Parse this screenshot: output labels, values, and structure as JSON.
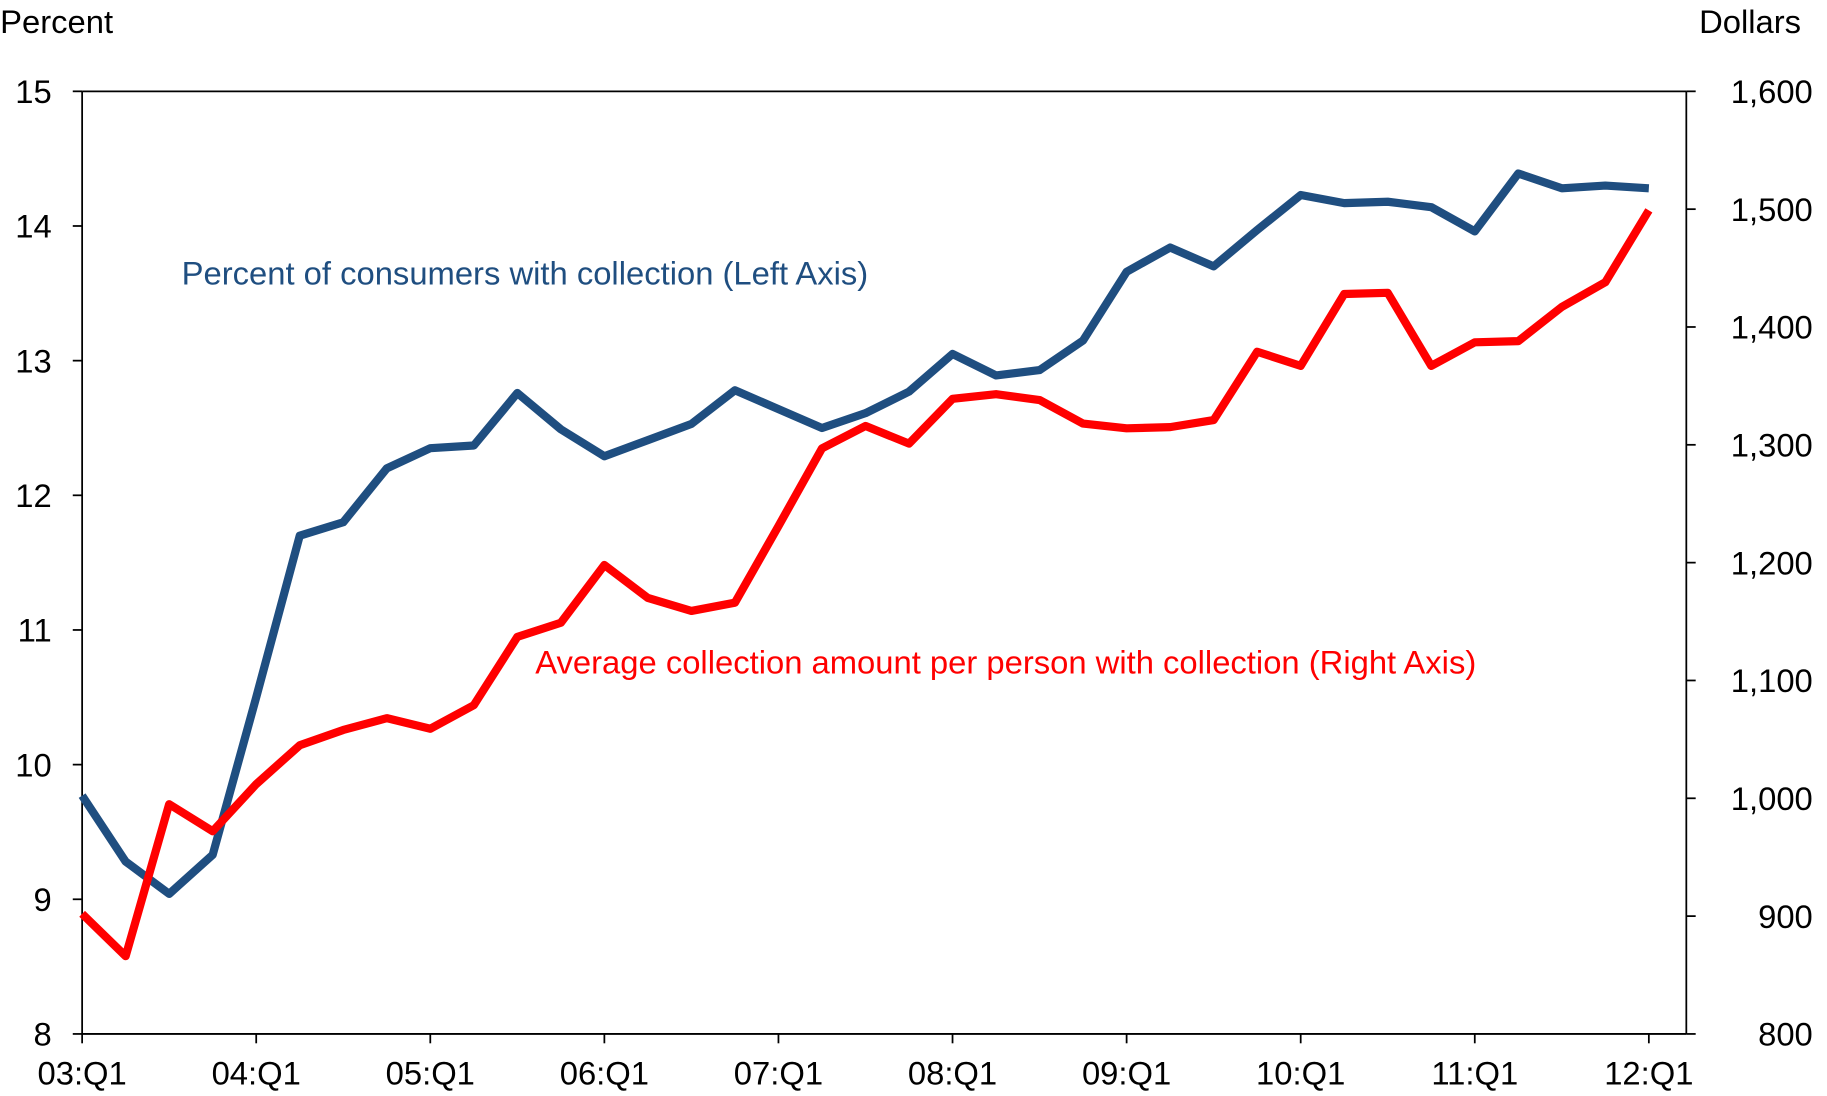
{
  "chart_data": {
    "type": "line",
    "y_label": "Percent",
    "y2_label": "Dollars",
    "annotations": [
      "Percent of consumers with collection (Left Axis)",
      "Average collection amount per person with collection (Right Axis)"
    ],
    "categories": [
      "03:Q1",
      null,
      null,
      null,
      "04:Q1",
      null,
      null,
      null,
      "05:Q1",
      null,
      null,
      null,
      "06:Q1",
      null,
      null,
      null,
      "07:Q1",
      null,
      null,
      null,
      "08:Q1",
      null,
      null,
      null,
      "09:Q1",
      null,
      null,
      null,
      "10:Q1",
      null,
      null,
      null,
      "11:Q1",
      null,
      null,
      null,
      "12:Q1"
    ],
    "ylim": [
      8,
      15
    ],
    "yticks": [
      8,
      9,
      10,
      11,
      12,
      13,
      14,
      15
    ],
    "y2lim": [
      800,
      1600
    ],
    "y2ticks": [
      800,
      900,
      {
        "value": 1000,
        "label": "1,000"
      },
      {
        "value": 1100,
        "label": "1,100"
      },
      {
        "value": 1200,
        "label": "1,200"
      },
      {
        "value": 1300,
        "label": "1,300"
      },
      {
        "value": 1400,
        "label": "1,400"
      },
      {
        "value": 1500,
        "label": "1,500"
      },
      {
        "value": 1600,
        "label": "1,600"
      }
    ],
    "grid": false,
    "series": [
      {
        "name": "Percent of consumers with collection",
        "color": "#1f4e80",
        "values": [
          9.77,
          9.28,
          9.04,
          9.33,
          10.5,
          11.7,
          11.8,
          12.2,
          12.35,
          12.37,
          12.76,
          12.49,
          12.29,
          12.41,
          12.53,
          12.78,
          12.64,
          12.5,
          12.61,
          12.77,
          13.05,
          12.89,
          12.93,
          13.15,
          13.66,
          13.84,
          13.7,
          13.97,
          14.23,
          14.17,
          14.18,
          14.14,
          13.96,
          14.39,
          14.28,
          14.3,
          14.28
        ]
      },
      {
        "name": "Average collection amount per person with collection",
        "color": "#ff0000",
        "axis": "y2",
        "values": [
          902,
          866,
          995,
          972,
          1012,
          1045,
          1058,
          1068,
          1059,
          1079,
          1137,
          1149,
          1198,
          1170,
          1159,
          1166,
          1231,
          1297,
          1316,
          1301,
          1339,
          1343,
          1338,
          1318,
          1314,
          1315,
          1321,
          1379,
          1367,
          1428,
          1429,
          1367,
          1387,
          1388,
          1417,
          1438,
          1499
        ]
      }
    ]
  }
}
